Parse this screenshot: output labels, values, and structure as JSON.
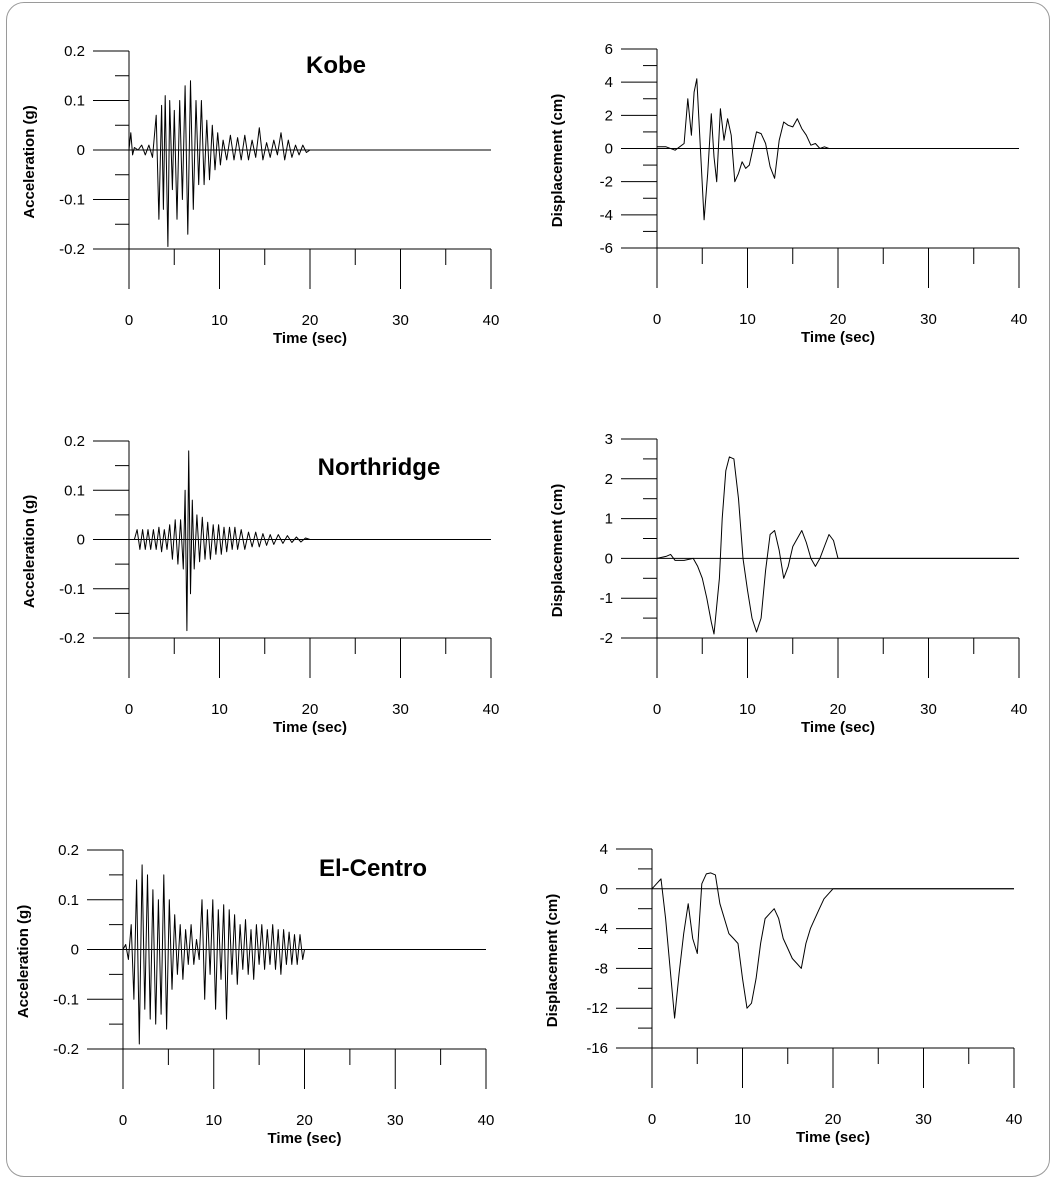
{
  "chart_data": [
    {
      "type": "line",
      "title": "Kobe",
      "xlabel": "Time (sec)",
      "ylabel": "Acceleration (g)",
      "xlim": [
        0,
        40
      ],
      "ylim": [
        -0.2,
        0.2
      ],
      "xticks": [
        "0",
        "10",
        "20",
        "30",
        "40"
      ],
      "yticks": [
        "0.2",
        "0.1",
        "0",
        "-0.1",
        "-0.2"
      ],
      "grid": false,
      "series": [
        {
          "x": [
            0,
            0.2,
            0.4,
            0.6,
            1.0,
            1.4,
            1.8,
            2.2,
            2.6,
            3.0,
            3.3,
            3.6,
            3.8,
            4.0,
            4.3,
            4.5,
            4.8,
            5.0,
            5.3,
            5.6,
            5.9,
            6.2,
            6.5,
            6.8,
            7.1,
            7.4,
            7.7,
            8.0,
            8.3,
            8.6,
            8.9,
            9.2,
            9.5,
            9.8,
            10.1,
            10.4,
            10.8,
            11.2,
            11.6,
            12.0,
            12.4,
            12.8,
            13.2,
            13.6,
            14.0,
            14.4,
            14.8,
            15.2,
            15.6,
            16.0,
            16.4,
            16.8,
            17.2,
            17.6,
            18.0,
            18.4,
            18.8,
            19.2,
            19.6,
            20.0,
            40.0
          ],
          "y": [
            0.0,
            0.035,
            -0.01,
            0.005,
            0.0,
            0.01,
            -0.01,
            0.01,
            -0.015,
            0.07,
            -0.14,
            0.09,
            -0.12,
            0.11,
            -0.195,
            0.1,
            -0.08,
            0.08,
            -0.14,
            0.1,
            -0.1,
            0.13,
            -0.17,
            0.14,
            -0.12,
            0.1,
            -0.07,
            0.1,
            -0.07,
            0.06,
            -0.06,
            0.05,
            -0.04,
            0.035,
            -0.03,
            0.02,
            -0.02,
            0.03,
            -0.02,
            0.025,
            -0.02,
            0.03,
            -0.02,
            0.02,
            -0.015,
            0.045,
            -0.02,
            0.015,
            -0.015,
            0.02,
            -0.01,
            0.035,
            -0.02,
            0.02,
            -0.015,
            0.01,
            -0.01,
            0.01,
            -0.005,
            0.0,
            0.0
          ]
        }
      ]
    },
    {
      "type": "line",
      "title": "",
      "xlabel": "Time (sec)",
      "ylabel": "Displacement (cm)",
      "xlim": [
        0,
        40
      ],
      "ylim": [
        -6,
        6
      ],
      "xticks": [
        "0",
        "10",
        "20",
        "30",
        "40"
      ],
      "yticks": [
        "6",
        "4",
        "2",
        "0",
        "-2",
        "-4",
        "-6"
      ],
      "grid": false,
      "series": [
        {
          "x": [
            0,
            1.0,
            2.0,
            3.0,
            3.4,
            3.8,
            4.1,
            4.4,
            4.8,
            5.2,
            5.6,
            6.0,
            6.3,
            6.6,
            7.0,
            7.4,
            7.8,
            8.2,
            8.6,
            9.0,
            9.4,
            9.8,
            10.2,
            10.6,
            11.0,
            11.5,
            12.0,
            12.5,
            13.0,
            13.5,
            14.0,
            14.5,
            15.0,
            15.5,
            16.0,
            16.5,
            17.0,
            17.5,
            18.0,
            18.5,
            19.0,
            19.5,
            20.0,
            40.0
          ],
          "y": [
            0.1,
            0.1,
            -0.1,
            0.3,
            3.0,
            0.8,
            3.4,
            4.2,
            0.0,
            -4.3,
            -1.5,
            2.1,
            -0.5,
            -2.0,
            2.4,
            0.5,
            1.8,
            0.8,
            -2.0,
            -1.5,
            -0.8,
            -1.2,
            -1.0,
            0.0,
            1.0,
            0.9,
            0.3,
            -1.1,
            -1.8,
            0.5,
            1.6,
            1.4,
            1.3,
            1.8,
            1.2,
            0.8,
            0.2,
            0.3,
            0.0,
            0.1,
            0.0,
            0.0,
            0.0,
            0.0
          ]
        }
      ]
    },
    {
      "type": "line",
      "title": "Northridge",
      "xlabel": "Time (sec)",
      "ylabel": "Acceleration (g)",
      "xlim": [
        0,
        40
      ],
      "ylim": [
        -0.2,
        0.2
      ],
      "xticks": [
        "0",
        "10",
        "20",
        "30",
        "40"
      ],
      "yticks": [
        "0.2",
        "0.1",
        "0",
        "-0.1",
        "-0.2"
      ],
      "grid": false,
      "series": [
        {
          "x": [
            0,
            0.6,
            0.9,
            1.2,
            1.5,
            1.8,
            2.1,
            2.4,
            2.7,
            3.0,
            3.3,
            3.6,
            3.9,
            4.2,
            4.5,
            4.8,
            5.1,
            5.4,
            5.7,
            6.0,
            6.2,
            6.4,
            6.6,
            6.8,
            7.0,
            7.2,
            7.5,
            7.8,
            8.1,
            8.4,
            8.7,
            9.0,
            9.3,
            9.6,
            9.9,
            10.2,
            10.5,
            10.8,
            11.1,
            11.4,
            11.7,
            12.0,
            12.4,
            12.8,
            13.2,
            13.6,
            14.0,
            14.4,
            14.8,
            15.2,
            15.6,
            16.0,
            16.5,
            17.0,
            17.5,
            18.0,
            18.5,
            19.0,
            19.5,
            20.0,
            40.0
          ],
          "y": [
            0.0,
            0.0,
            0.02,
            -0.02,
            0.02,
            -0.02,
            0.02,
            -0.02,
            0.02,
            -0.02,
            0.025,
            -0.025,
            0.02,
            -0.02,
            0.03,
            -0.04,
            0.04,
            -0.05,
            0.04,
            -0.06,
            0.1,
            -0.185,
            0.18,
            -0.11,
            0.08,
            -0.06,
            0.05,
            -0.045,
            0.045,
            -0.04,
            0.035,
            -0.04,
            0.03,
            -0.03,
            0.03,
            -0.03,
            0.025,
            -0.025,
            0.025,
            -0.02,
            0.025,
            -0.02,
            0.02,
            -0.02,
            0.015,
            -0.015,
            0.015,
            -0.015,
            0.012,
            -0.012,
            0.01,
            -0.01,
            0.01,
            -0.008,
            0.008,
            -0.006,
            0.005,
            -0.005,
            0.003,
            0.0,
            0.0
          ]
        }
      ]
    },
    {
      "type": "line",
      "title": "",
      "xlabel": "Time (sec)",
      "ylabel": "Displacement (cm)",
      "xlim": [
        0,
        40
      ],
      "ylim": [
        -2,
        3
      ],
      "xticks": [
        "0",
        "10",
        "20",
        "30",
        "40"
      ],
      "yticks": [
        "3",
        "2",
        "1",
        "0",
        "-1",
        "-2"
      ],
      "grid": false,
      "series": [
        {
          "x": [
            0,
            1.0,
            1.5,
            2.0,
            3.0,
            4.0,
            4.5,
            5.0,
            5.5,
            6.0,
            6.3,
            6.6,
            6.9,
            7.2,
            7.6,
            8.0,
            8.5,
            9.0,
            9.5,
            10.0,
            10.5,
            11.0,
            11.5,
            12.0,
            12.5,
            13.0,
            13.5,
            14.0,
            14.5,
            15.0,
            15.5,
            16.0,
            16.5,
            17.0,
            17.5,
            18.0,
            18.5,
            19.0,
            19.5,
            20.0,
            40.0
          ],
          "y": [
            0.0,
            0.05,
            0.1,
            -0.05,
            -0.05,
            0.0,
            -0.2,
            -0.5,
            -1.0,
            -1.6,
            -1.9,
            -1.2,
            -0.5,
            1.0,
            2.2,
            2.55,
            2.5,
            1.5,
            0.0,
            -0.8,
            -1.5,
            -1.85,
            -1.5,
            -0.3,
            0.6,
            0.7,
            0.2,
            -0.5,
            -0.2,
            0.3,
            0.5,
            0.7,
            0.4,
            0.0,
            -0.2,
            0.0,
            0.3,
            0.6,
            0.45,
            0.0,
            0.0
          ]
        }
      ]
    },
    {
      "type": "line",
      "title": "El-Centro",
      "xlabel": "Time (sec)",
      "ylabel": "Acceleration (g)",
      "xlim": [
        0,
        40
      ],
      "ylim": [
        -0.2,
        0.2
      ],
      "xticks": [
        "0",
        "10",
        "20",
        "30",
        "40"
      ],
      "yticks": [
        "0.2",
        "0.1",
        "0",
        "-0.1",
        "-0.2"
      ],
      "grid": false,
      "series": [
        {
          "x": [
            0,
            0.3,
            0.6,
            0.9,
            1.2,
            1.5,
            1.8,
            2.1,
            2.4,
            2.7,
            3.0,
            3.3,
            3.6,
            3.9,
            4.2,
            4.5,
            4.8,
            5.1,
            5.4,
            5.7,
            6.0,
            6.3,
            6.6,
            6.9,
            7.2,
            7.5,
            7.8,
            8.1,
            8.4,
            8.7,
            9.0,
            9.3,
            9.6,
            9.9,
            10.2,
            10.5,
            10.8,
            11.1,
            11.4,
            11.7,
            12.0,
            12.3,
            12.6,
            12.9,
            13.2,
            13.5,
            13.8,
            14.1,
            14.4,
            14.7,
            15.0,
            15.3,
            15.6,
            15.9,
            16.2,
            16.5,
            16.8,
            17.1,
            17.4,
            17.7,
            18.0,
            18.3,
            18.6,
            18.9,
            19.2,
            19.5,
            19.8,
            20.0,
            40.0
          ],
          "y": [
            0.0,
            0.01,
            -0.02,
            0.05,
            -0.1,
            0.14,
            -0.19,
            0.17,
            -0.12,
            0.15,
            -0.14,
            0.12,
            -0.15,
            0.1,
            -0.13,
            0.15,
            -0.16,
            0.1,
            -0.08,
            0.07,
            -0.05,
            0.05,
            -0.06,
            0.04,
            -0.03,
            0.05,
            -0.03,
            0.02,
            -0.02,
            0.1,
            -0.1,
            0.08,
            -0.05,
            0.1,
            -0.12,
            0.08,
            -0.06,
            0.09,
            -0.14,
            0.08,
            -0.05,
            0.07,
            -0.07,
            0.05,
            -0.04,
            0.06,
            -0.05,
            0.04,
            -0.06,
            0.05,
            -0.03,
            0.05,
            -0.04,
            0.04,
            -0.03,
            0.05,
            -0.04,
            0.04,
            -0.05,
            0.04,
            -0.03,
            0.035,
            -0.03,
            0.03,
            -0.03,
            0.03,
            -0.02,
            0.0,
            0.0
          ]
        }
      ]
    },
    {
      "type": "line",
      "title": "",
      "xlabel": "Time (sec)",
      "ylabel": "Displacement (cm)",
      "xlim": [
        0,
        40
      ],
      "ylim": [
        -16,
        4
      ],
      "xticks": [
        "0",
        "10",
        "20",
        "30",
        "40"
      ],
      "yticks": [
        "4",
        "0",
        "-4",
        "-8",
        "-12",
        "-16"
      ],
      "grid": false,
      "series": [
        {
          "x": [
            0,
            0.5,
            1.0,
            1.5,
            2.0,
            2.5,
            3.0,
            3.5,
            4.0,
            4.5,
            5.0,
            5.5,
            6.0,
            6.5,
            7.0,
            7.5,
            8.0,
            8.5,
            9.0,
            9.5,
            10.0,
            10.5,
            11.0,
            11.5,
            12.0,
            12.5,
            13.0,
            13.5,
            14.0,
            14.5,
            15.0,
            15.5,
            16.0,
            16.5,
            17.0,
            17.5,
            18.0,
            18.5,
            19.0,
            19.5,
            20.0,
            40.0
          ],
          "y": [
            0.0,
            0.5,
            1.0,
            -3.0,
            -8.0,
            -13.0,
            -8.5,
            -4.5,
            -1.5,
            -5.0,
            -6.5,
            0.5,
            1.5,
            1.6,
            1.4,
            -1.5,
            -3.0,
            -4.5,
            -5.0,
            -5.5,
            -9.0,
            -12.0,
            -11.5,
            -9.0,
            -5.5,
            -3.0,
            -2.5,
            -2.0,
            -3.0,
            -5.0,
            -6.0,
            -7.0,
            -7.5,
            -8.0,
            -5.5,
            -4.0,
            -3.0,
            -2.0,
            -1.0,
            -0.5,
            0.0,
            0.0
          ]
        }
      ]
    }
  ]
}
